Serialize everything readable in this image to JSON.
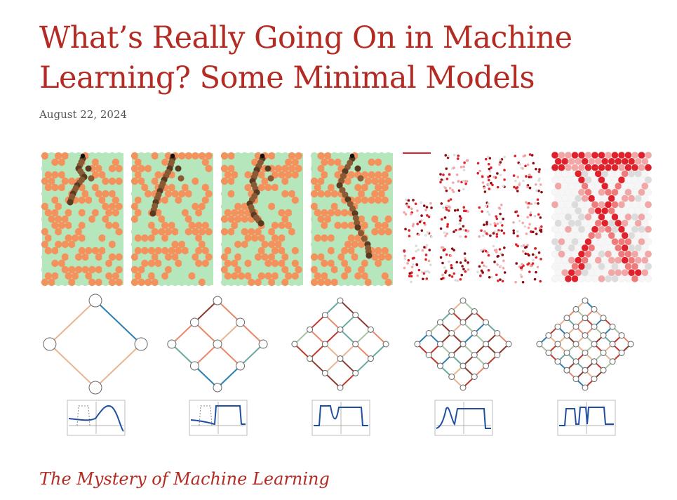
{
  "article": {
    "title": "What’s Really Going On in Machine Learning? Some Minimal Models",
    "date": "August 22, 2024",
    "section_heading": "The Mystery of Machine Learning"
  },
  "figure": {
    "panel_count_top": 6,
    "diamond_network_count": 5,
    "colors": {
      "hex_light": "#b6e6bb",
      "hex_orange": "#f4925e",
      "path_dark": "#5b3a22",
      "path_mid": "#8a5a34",
      "red_strong": "#e0202a",
      "red_light": "#f2a6a6",
      "gray_light": "#dcdcdc",
      "node_stroke": "#666666",
      "edge_red": "#c0392b",
      "edge_brown": "#8b3a2e",
      "edge_blue": "#2f7fb0",
      "edge_orange": "#e8876a",
      "edge_peach": "#e8b591",
      "edge_sage": "#a8c3a0",
      "edge_teal": "#6aa9a0",
      "curve_blue": "#1f4fa0"
    }
  }
}
